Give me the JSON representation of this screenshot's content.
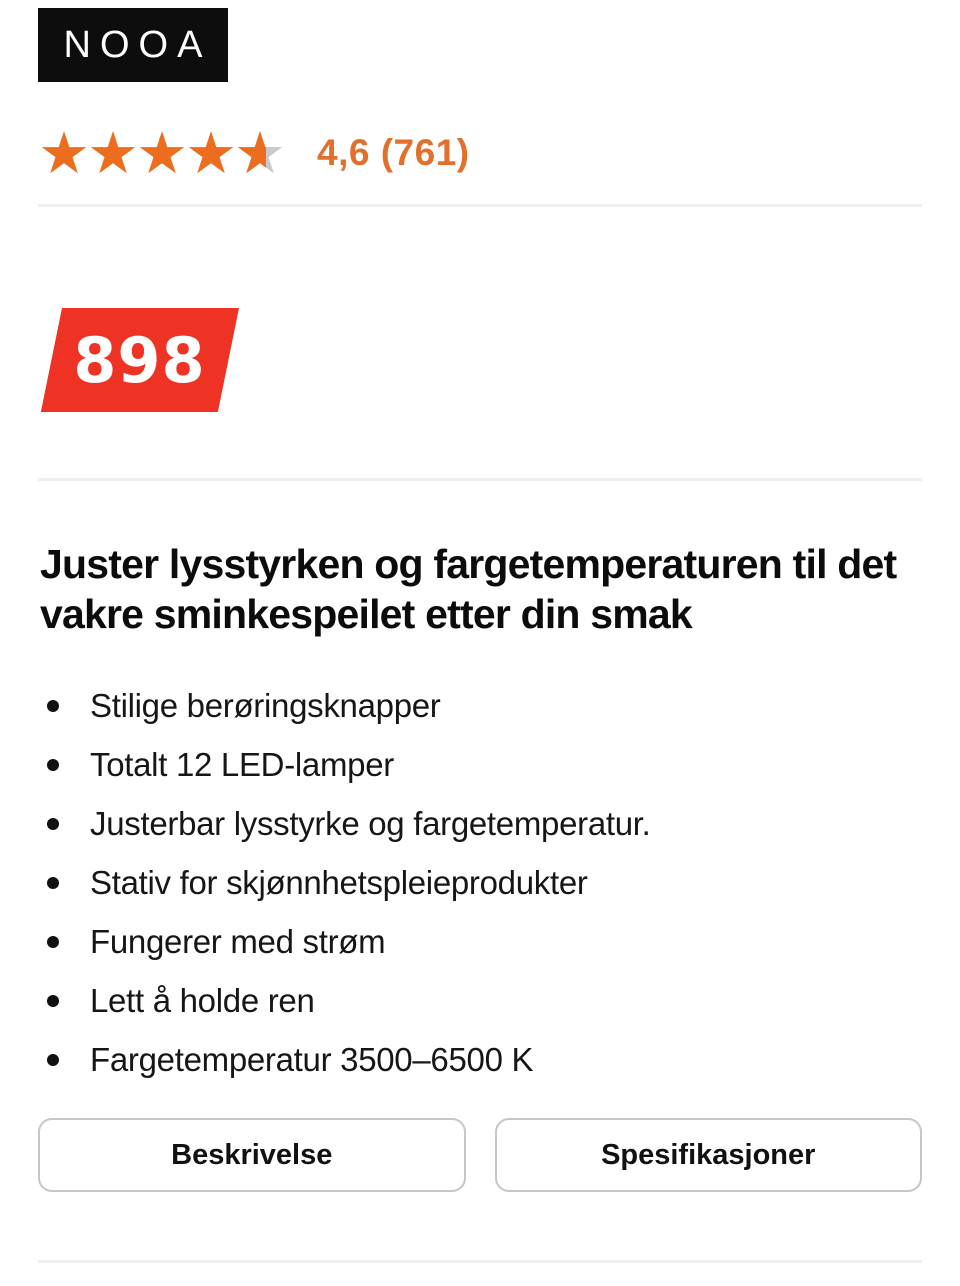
{
  "brand": {
    "name": "NOOA"
  },
  "rating": {
    "display": "4,6 (761)",
    "score": "4,6",
    "review_count": "761",
    "stars_total": 5,
    "stars_filled": 4.6
  },
  "price": {
    "value": "898"
  },
  "product": {
    "headline": "Juster lysstyrken og fargetemperaturen til det vakre sminkespeilet etter din smak",
    "bullets": [
      "Stilige berøringsknapper",
      "Totalt 12 LED-lamper",
      "Justerbar lysstyrke og fargetemperatur.",
      "Stativ for skjønnhetspleieprodukter",
      "Fungerer med strøm",
      "Lett å holde ren",
      "Fargetemperatur 3500–6500 K"
    ]
  },
  "tabs": [
    {
      "label": "Beskrivelse"
    },
    {
      "label": "Spesifikasjoner"
    }
  ],
  "icons": {
    "star": "★"
  },
  "colors": {
    "star_filled": "#ed6d1f",
    "star_empty": "#c9c9c9",
    "rating_text": "#e2702d",
    "price_badge": "#ee3224",
    "logo_background": "#0d0d0d",
    "divider": "#f0efed",
    "button_border": "#c6c6c6"
  }
}
